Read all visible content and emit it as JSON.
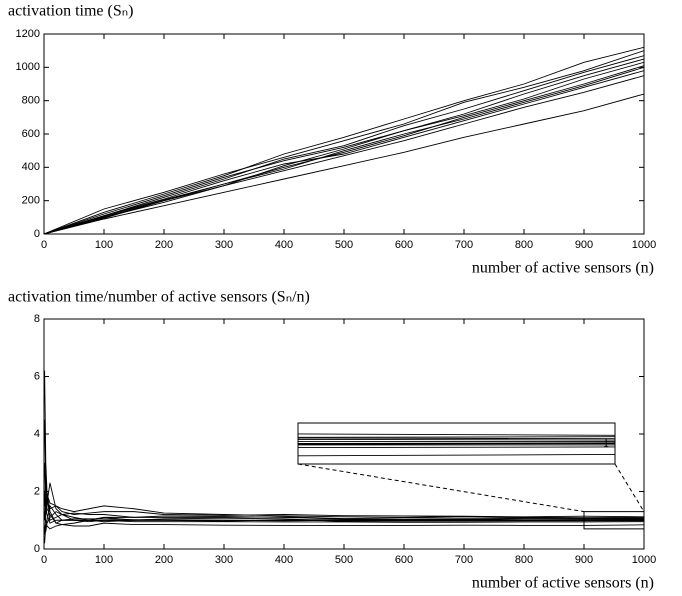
{
  "chart_data": [
    {
      "type": "line",
      "title": "activation time (Sₙ)",
      "xlabel": "number of active sensors (n)",
      "x": [
        0,
        100,
        200,
        300,
        400,
        500,
        600,
        700,
        800,
        900,
        1000
      ],
      "xlim": [
        0,
        1000
      ],
      "ylim": [
        0,
        1200
      ],
      "xticks": [
        0,
        100,
        200,
        300,
        400,
        500,
        600,
        700,
        800,
        900,
        1000
      ],
      "yticks": [
        0,
        200,
        400,
        600,
        800,
        1000,
        1200
      ],
      "series": [
        {
          "color": "#000000",
          "values": [
            0,
            90,
            170,
            250,
            330,
            410,
            490,
            580,
            660,
            740,
            840
          ]
        },
        {
          "color": "#000000",
          "values": [
            0,
            100,
            190,
            290,
            380,
            470,
            560,
            660,
            760,
            850,
            950
          ]
        },
        {
          "color": "#000000",
          "values": [
            0,
            110,
            210,
            320,
            420,
            480,
            580,
            680,
            780,
            880,
            980
          ]
        },
        {
          "color": "#000000",
          "values": [
            0,
            95,
            200,
            300,
            390,
            500,
            600,
            690,
            790,
            890,
            1000
          ]
        },
        {
          "color": "#000000",
          "values": [
            0,
            105,
            205,
            300,
            400,
            490,
            590,
            700,
            800,
            900,
            1010
          ]
        },
        {
          "color": "#000000",
          "values": [
            0,
            120,
            230,
            340,
            440,
            520,
            620,
            710,
            810,
            930,
            1030
          ]
        },
        {
          "color": "#000000",
          "values": [
            0,
            100,
            200,
            290,
            410,
            510,
            620,
            720,
            840,
            950,
            1050
          ]
        },
        {
          "color": "#000000",
          "values": [
            0,
            110,
            220,
            330,
            450,
            530,
            650,
            750,
            860,
            970,
            1070
          ]
        },
        {
          "color": "#000000",
          "values": [
            0,
            150,
            250,
            360,
            460,
            560,
            660,
            790,
            880,
            980,
            1100
          ]
        },
        {
          "color": "#000000",
          "values": [
            0,
            130,
            240,
            350,
            480,
            580,
            690,
            800,
            900,
            1030,
            1120
          ]
        }
      ]
    },
    {
      "type": "line",
      "title": "activation time/number of active sensors (Sₙ/n)",
      "xlabel": "number of active sensors (n)",
      "x": [
        1,
        3,
        5,
        10,
        20,
        30,
        50,
        75,
        100,
        150,
        200,
        300,
        400,
        500,
        600,
        700,
        800,
        900,
        1000
      ],
      "xlim": [
        0,
        1000
      ],
      "ylim": [
        0,
        8
      ],
      "xticks": [
        0,
        100,
        200,
        300,
        400,
        500,
        600,
        700,
        800,
        900,
        1000
      ],
      "yticks": [
        0,
        2,
        4,
        6,
        8
      ],
      "series": [
        {
          "color": "#000000",
          "values": [
            6.2,
            3.0,
            2.0,
            1.3,
            0.9,
            0.85,
            0.8,
            0.8,
            0.9,
            0.85,
            0.85,
            0.83,
            0.82,
            0.82,
            0.82,
            0.83,
            0.82,
            0.82,
            0.84
          ]
        },
        {
          "color": "#000000",
          "values": [
            0.2,
            0.8,
            1.0,
            1.5,
            1.2,
            1.0,
            1.0,
            0.95,
            1.0,
            0.95,
            0.95,
            0.95,
            0.94,
            0.94,
            0.93,
            0.93,
            0.94,
            0.94,
            0.95
          ]
        },
        {
          "color": "#000000",
          "values": [
            1.5,
            2.5,
            1.8,
            1.0,
            1.1,
            1.2,
            1.1,
            1.0,
            1.1,
            1.0,
            1.05,
            1.07,
            1.05,
            0.96,
            0.97,
            0.97,
            0.98,
            0.98,
            0.98
          ]
        },
        {
          "color": "#000000",
          "values": [
            0.5,
            1.2,
            1.6,
            2.3,
            1.4,
            1.2,
            1.0,
            1.0,
            0.95,
            1.0,
            1.0,
            1.0,
            0.98,
            1.0,
            1.0,
            0.99,
            0.99,
            0.99,
            1.0
          ]
        },
        {
          "color": "#000000",
          "values": [
            3.0,
            1.5,
            1.2,
            0.9,
            1.0,
            1.0,
            1.05,
            1.05,
            1.05,
            1.02,
            1.02,
            1.0,
            1.0,
            0.98,
            0.98,
            1.0,
            1.0,
            1.0,
            1.01
          ]
        },
        {
          "color": "#000000",
          "values": [
            0.8,
            0.6,
            0.9,
            1.1,
            1.3,
            1.2,
            1.25,
            1.2,
            1.2,
            1.1,
            1.15,
            1.13,
            1.1,
            1.04,
            1.03,
            1.01,
            1.01,
            1.03,
            1.03
          ]
        },
        {
          "color": "#000000",
          "values": [
            1.0,
            1.8,
            1.4,
            1.2,
            0.9,
            1.0,
            1.0,
            1.0,
            1.0,
            1.0,
            1.0,
            0.97,
            1.02,
            1.02,
            1.03,
            1.03,
            1.05,
            1.06,
            1.05
          ]
        },
        {
          "color": "#000000",
          "values": [
            2.0,
            1.0,
            0.8,
            0.7,
            0.8,
            0.85,
            0.9,
            1.0,
            1.1,
            1.1,
            1.1,
            1.1,
            1.12,
            1.06,
            1.08,
            1.07,
            1.08,
            1.08,
            1.07
          ]
        },
        {
          "color": "#000000",
          "values": [
            4.5,
            2.2,
            1.6,
            1.4,
            1.5,
            1.4,
            1.3,
            1.4,
            1.5,
            1.4,
            1.25,
            1.2,
            1.15,
            1.12,
            1.1,
            1.13,
            1.1,
            1.09,
            1.1
          ]
        },
        {
          "color": "#000000",
          "values": [
            1.2,
            1.4,
            1.9,
            1.6,
            1.5,
            1.3,
            1.2,
            1.25,
            1.3,
            1.3,
            1.2,
            1.17,
            1.2,
            1.16,
            1.15,
            1.14,
            1.12,
            1.14,
            1.12
          ]
        }
      ],
      "inset": {
        "xlim": [
          900,
          1000
        ],
        "ylim": [
          0.7,
          1.3
        ],
        "yticks": [
          1
        ]
      }
    }
  ]
}
